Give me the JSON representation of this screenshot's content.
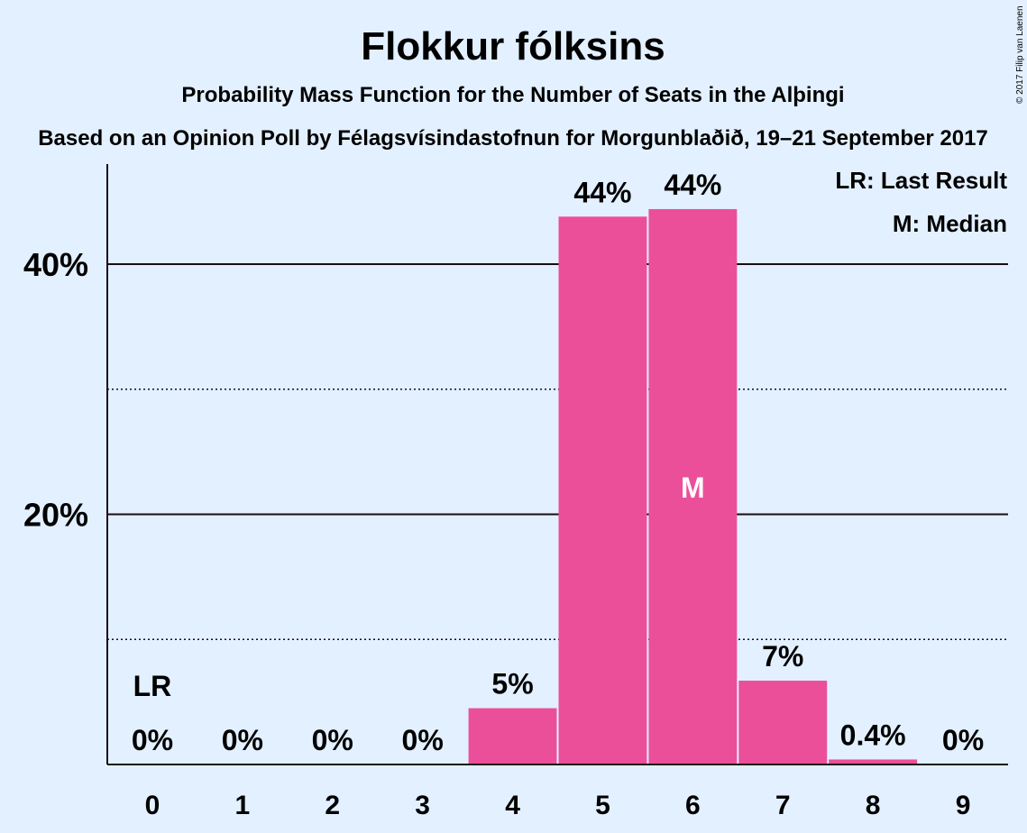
{
  "chart_data": {
    "type": "bar",
    "title": "Flokkur fólksins",
    "subtitle": "Probability Mass Function for the Number of Seats in the Alþingi",
    "source_line": "Based on an Opinion Poll by Félagsvísindastofnun for Morgunblaðið, 19–21 September 2017",
    "copyright": "© 2017 Filip van Laenen",
    "categories": [
      "0",
      "1",
      "2",
      "3",
      "4",
      "5",
      "6",
      "7",
      "8",
      "9"
    ],
    "values": [
      0,
      0,
      0,
      0,
      4.5,
      43.8,
      44.4,
      6.7,
      0.4,
      0
    ],
    "value_labels": [
      "0%",
      "0%",
      "0%",
      "0%",
      "5%",
      "44%",
      "44%",
      "7%",
      "0.4%",
      "0%"
    ],
    "ylim": [
      0,
      48
    ],
    "yticks": [
      {
        "value": 20,
        "label": "20%"
      },
      {
        "value": 40,
        "label": "40%"
      }
    ],
    "minor_gridlines": [
      10,
      30
    ],
    "bar_color": "#ec4f9a",
    "background_color": "#e3f0ff",
    "last_result": {
      "category": "0",
      "label": "LR"
    },
    "median": {
      "category": "6",
      "label": "M"
    },
    "legend": {
      "position": "top-right",
      "items": [
        "LR: Last Result",
        "M: Median"
      ]
    }
  }
}
